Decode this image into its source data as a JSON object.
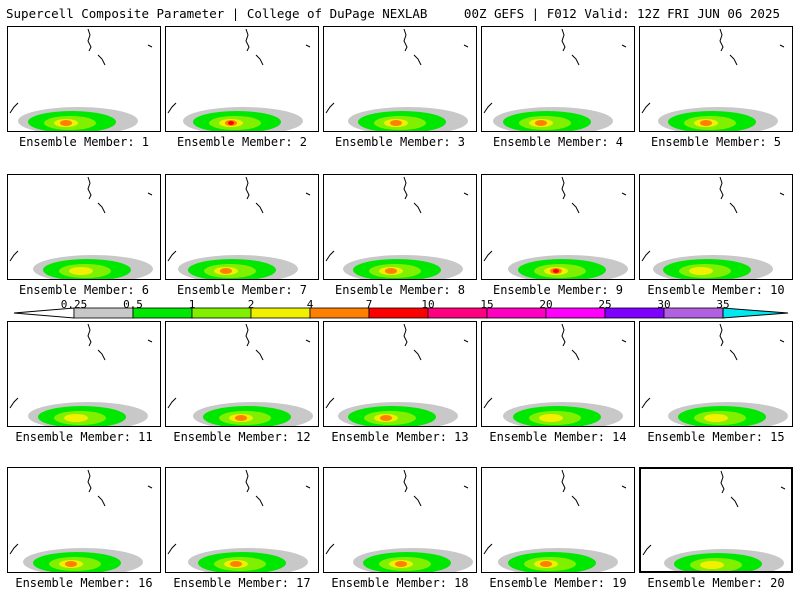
{
  "header": {
    "title": "Supercell Composite Parameter | College of DuPage NEXLAB",
    "run_info": "00Z GEFS | F012 Valid: 12Z FRI JUN 06 2025"
  },
  "members": [
    {
      "label": "Ensemble Member: 1",
      "scp_max": 4
    },
    {
      "label": "Ensemble Member: 2",
      "scp_max": 7
    },
    {
      "label": "Ensemble Member: 3",
      "scp_max": 4
    },
    {
      "label": "Ensemble Member: 4",
      "scp_max": 4
    },
    {
      "label": "Ensemble Member: 5",
      "scp_max": 4
    },
    {
      "label": "Ensemble Member: 6",
      "scp_max": 2
    },
    {
      "label": "Ensemble Member: 7",
      "scp_max": 4
    },
    {
      "label": "Ensemble Member: 8",
      "scp_max": 4
    },
    {
      "label": "Ensemble Member: 9",
      "scp_max": 10
    },
    {
      "label": "Ensemble Member: 10",
      "scp_max": 2
    },
    {
      "label": "Ensemble Member: 11",
      "scp_max": 2
    },
    {
      "label": "Ensemble Member: 12",
      "scp_max": 4
    },
    {
      "label": "Ensemble Member: 13",
      "scp_max": 4
    },
    {
      "label": "Ensemble Member: 14",
      "scp_max": 2
    },
    {
      "label": "Ensemble Member: 15",
      "scp_max": 2
    },
    {
      "label": "Ensemble Member: 16",
      "scp_max": 4
    },
    {
      "label": "Ensemble Member: 17",
      "scp_max": 4
    },
    {
      "label": "Ensemble Member: 18",
      "scp_max": 4
    },
    {
      "label": "Ensemble Member: 19",
      "scp_max": 4
    },
    {
      "label": "Ensemble Member: 20",
      "scp_max": 2,
      "selected": true
    }
  ],
  "colorbar": {
    "ticks": [
      "0.25",
      "0.5",
      "1",
      "2",
      "4",
      "7",
      "10",
      "15",
      "20",
      "25",
      "30",
      "35"
    ],
    "colors": [
      "#c8c8c8",
      "#00e800",
      "#80f000",
      "#f0f000",
      "#ff8000",
      "#ff0000",
      "#ff0080",
      "#ff00c0",
      "#ff00ff",
      "#8000ff",
      "#b060e0",
      "#00e8f0"
    ]
  }
}
